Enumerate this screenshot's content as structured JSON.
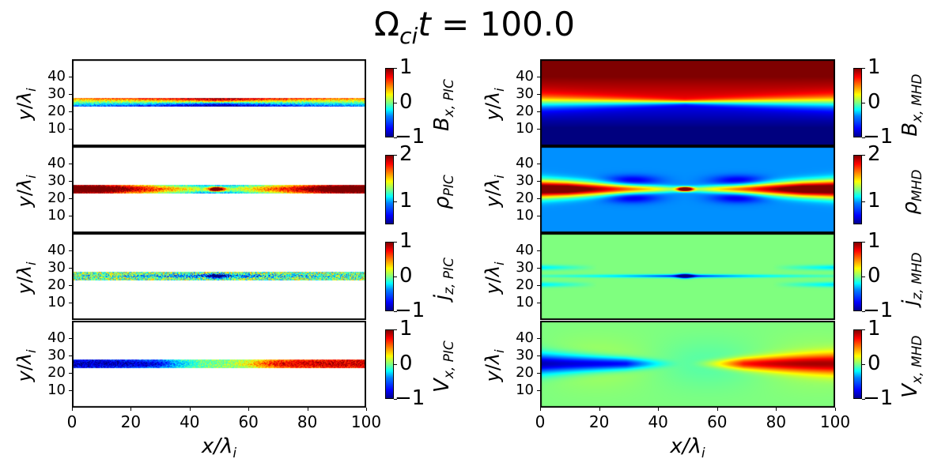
{
  "chart_data": {
    "type": "heatmap",
    "title": "Ω_ci t = 100.0",
    "title_parts": {
      "omega": "Ω",
      "sub": "ci",
      "t": "t",
      "eq": " = 100.0"
    },
    "colormap": "jet",
    "xlabel": "x/λ_i",
    "ylabel": "y/λ_i",
    "xlim": [
      0,
      100
    ],
    "ylim": [
      0,
      50
    ],
    "xticks": [
      "0",
      "20",
      "40",
      "60",
      "80",
      "100"
    ],
    "yticks": [
      "10",
      "20",
      "30",
      "40"
    ],
    "panels": [
      {
        "id": "bx_pic",
        "column": "PIC",
        "quantity": "B",
        "subscript": "x, PIC",
        "clim": [
          -1,
          1
        ],
        "cbar_ticks": [
          "1",
          "0",
          "−1"
        ],
        "domain_y": [
          23,
          28
        ]
      },
      {
        "id": "rho_pic",
        "column": "PIC",
        "quantity": "ρ",
        "subscript": "PIC",
        "clim": [
          0.5,
          2
        ],
        "cbar_ticks": [
          "2",
          "1"
        ],
        "domain_y": [
          23,
          28
        ]
      },
      {
        "id": "jz_pic",
        "column": "PIC",
        "quantity": "j",
        "subscript": "z, PIC",
        "clim": [
          -1,
          1
        ],
        "cbar_ticks": [
          "1",
          "0",
          "−1"
        ],
        "domain_y": [
          23,
          28
        ]
      },
      {
        "id": "vx_pic",
        "column": "PIC",
        "quantity": "V",
        "subscript": "x, PIC",
        "clim": [
          -1,
          1
        ],
        "cbar_ticks": [
          "1",
          "0",
          "−1"
        ],
        "domain_y": [
          23,
          28
        ]
      },
      {
        "id": "bx_mhd",
        "column": "MHD",
        "quantity": "B",
        "subscript": "x, MHD",
        "clim": [
          -1,
          1
        ],
        "cbar_ticks": [
          "1",
          "0",
          "−1"
        ],
        "domain_y": [
          0,
          50
        ]
      },
      {
        "id": "rho_mhd",
        "column": "MHD",
        "quantity": "ρ",
        "subscript": "MHD",
        "clim": [
          0.5,
          2
        ],
        "cbar_ticks": [
          "2",
          "1"
        ],
        "domain_y": [
          0,
          50
        ]
      },
      {
        "id": "jz_mhd",
        "column": "MHD",
        "quantity": "j",
        "subscript": "z, MHD",
        "clim": [
          -1,
          1
        ],
        "cbar_ticks": [
          "1",
          "0",
          "−1"
        ],
        "domain_y": [
          0,
          50
        ]
      },
      {
        "id": "vx_mhd",
        "column": "MHD",
        "quantity": "V",
        "subscript": "x, MHD",
        "clim": [
          -1,
          1
        ],
        "cbar_ticks": [
          "1",
          "0",
          "−1"
        ],
        "domain_y": [
          0,
          50
        ]
      }
    ],
    "features": {
      "current_sheet_center_y": 25.5,
      "x_point_x": 49,
      "plasmoid_center": [
        49,
        25.5
      ]
    }
  }
}
